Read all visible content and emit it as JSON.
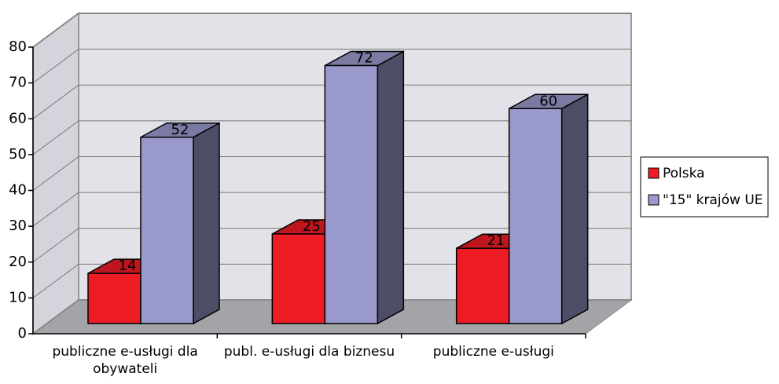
{
  "chart_data": {
    "type": "bar3d",
    "categories": [
      "publiczne e-usługi dla obywateli",
      "publ. e-usługi dla biznesu",
      "publiczne e-usługi"
    ],
    "series": [
      {
        "name": "Polska",
        "color": "#ee1c25",
        "values": [
          14,
          25,
          21
        ]
      },
      {
        "name": "\"15\" krajów UE",
        "color": "#9999cc",
        "values": [
          52,
          72,
          60
        ]
      }
    ],
    "ylim": [
      0,
      80
    ],
    "yticks": [
      0,
      10,
      20,
      30,
      40,
      50,
      60,
      70,
      80
    ],
    "grid": true,
    "legend": "right"
  }
}
